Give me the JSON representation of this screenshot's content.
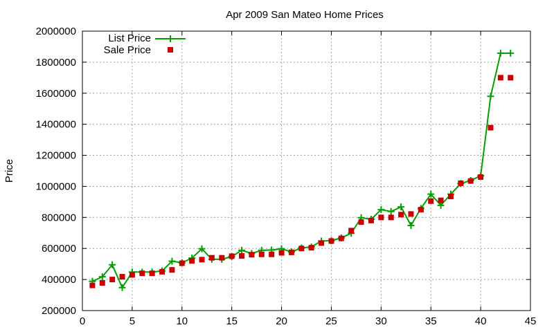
{
  "chart_data": {
    "type": "line",
    "title": "Apr 2009 San Mateo Home Prices",
    "xlabel": "",
    "ylabel": "Price",
    "xlim": [
      0,
      45
    ],
    "ylim": [
      200000,
      2000000
    ],
    "xticks": [
      0,
      5,
      10,
      15,
      20,
      25,
      30,
      35,
      40,
      45
    ],
    "yticks": [
      200000,
      400000,
      600000,
      800000,
      1000000,
      1200000,
      1400000,
      1600000,
      1800000,
      2000000
    ],
    "grid": true,
    "legend_position": "top-left",
    "x": [
      1,
      2,
      3,
      4,
      5,
      6,
      7,
      8,
      9,
      10,
      11,
      12,
      13,
      14,
      15,
      16,
      17,
      18,
      19,
      20,
      21,
      22,
      23,
      24,
      25,
      26,
      27,
      28,
      29,
      30,
      31,
      32,
      33,
      34,
      35,
      36,
      37,
      38,
      39,
      40,
      41,
      42,
      43
    ],
    "series": [
      {
        "name": "List Price",
        "style": "linespoints",
        "color": "#00a000",
        "marker": "plus",
        "values": [
          388000,
          418000,
          495000,
          348000,
          448000,
          448000,
          448000,
          455000,
          518000,
          508000,
          538000,
          598000,
          530000,
          530000,
          548000,
          588000,
          568000,
          588000,
          590000,
          598000,
          578000,
          603000,
          610000,
          648000,
          650000,
          668000,
          698000,
          798000,
          788000,
          850000,
          838000,
          868000,
          748000,
          858000,
          950000,
          878000,
          950000,
          1018000,
          1038000,
          1068000,
          1580000,
          1858000,
          1858000
        ]
      },
      {
        "name": "Sale Price",
        "style": "points",
        "color": "#cc0000",
        "marker": "square",
        "values": [
          362000,
          378000,
          400000,
          418000,
          430000,
          440000,
          440000,
          450000,
          462000,
          505000,
          520000,
          528000,
          540000,
          540000,
          550000,
          552000,
          560000,
          562000,
          562000,
          572000,
          575000,
          600000,
          605000,
          635000,
          648000,
          665000,
          715000,
          770000,
          780000,
          800000,
          800000,
          818000,
          822000,
          850000,
          905000,
          910000,
          935000,
          1020000,
          1035000,
          1060000,
          1378000,
          1700000,
          1700000
        ]
      }
    ]
  }
}
